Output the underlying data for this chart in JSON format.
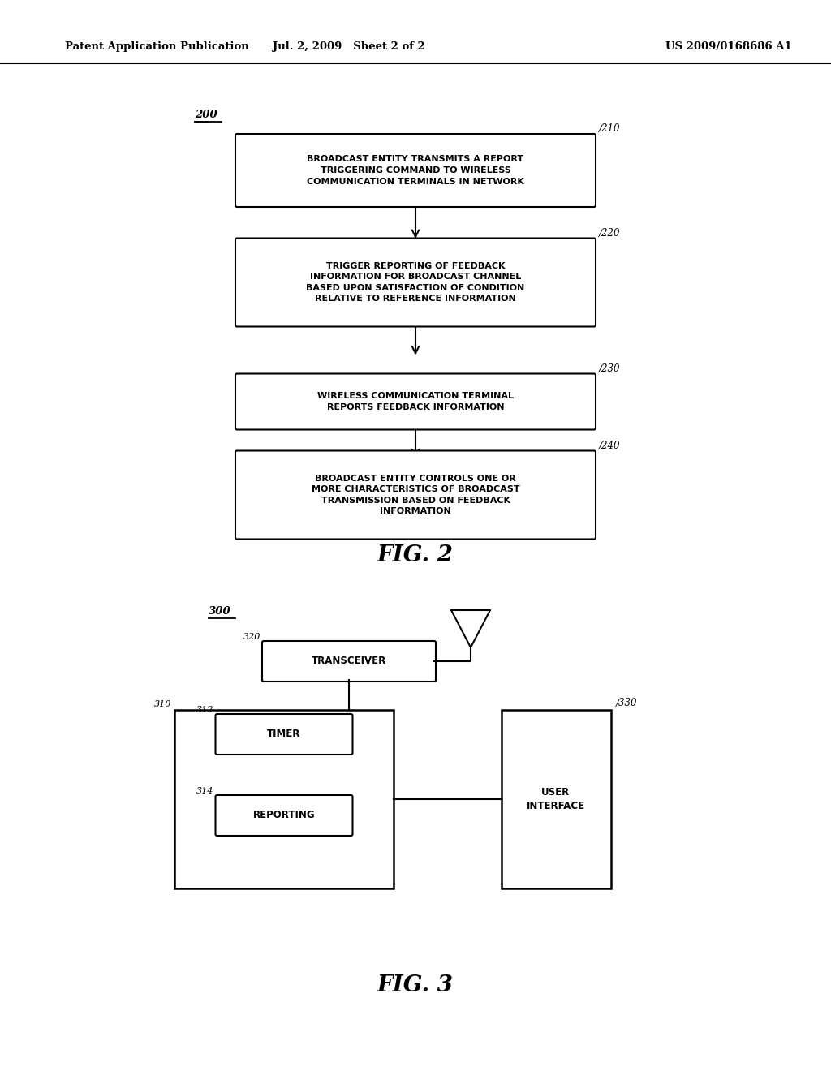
{
  "bg_color": "#ffffff",
  "header_left": "Patent Application Publication",
  "header_mid": "Jul. 2, 2009   Sheet 2 of 2",
  "header_right": "US 2009/0168686 A1",
  "fig2_caption": "FIG. 2",
  "fig3_caption": "FIG. 3",
  "box210_text": "BROADCAST ENTITY TRANSMITS A REPORT\nTRIGGERING COMMAND TO WIRELESS\nCOMMUNICATION TERMINALS IN NETWORK",
  "box220_text": "TRIGGER REPORTING OF FEEDBACK\nINFORMATION FOR BROADCAST CHANNEL\nBASED UPON SATISFACTION OF CONDITION\nRELATIVE TO REFERENCE INFORMATION",
  "box230_text": "WIRELESS COMMUNICATION TERMINAL\nREPORTS FEEDBACK INFORMATION",
  "box240_text": "BROADCAST ENTITY CONTROLS ONE OR\nMORE CHARACTERISTICS OF BROADCAST\nTRANSMISSION BASED ON FEEDBACK\nINFORMATION",
  "transceiver_text": "TRANSCEIVER",
  "timer_text": "TIMER",
  "reporting_text": "REPORTING",
  "ui_text": "USER\nINTERFACE"
}
